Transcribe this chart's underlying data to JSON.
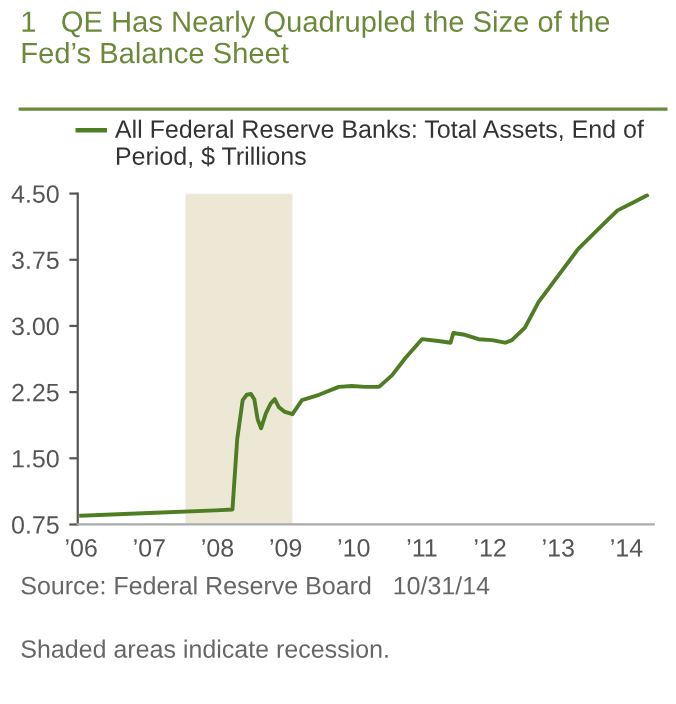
{
  "chart_data": {
    "type": "line",
    "title": "1   QE Has Nearly Quadrupled the Size of the Fed’s Balance Sheet",
    "x": [
      2006.0,
      2007.0,
      2007.97,
      2008.22,
      2008.29,
      2008.37,
      2008.43,
      2008.49,
      2008.54,
      2008.59,
      2008.64,
      2008.71,
      2008.78,
      2008.84,
      2008.9,
      2008.98,
      2009.1,
      2009.24,
      2009.49,
      2009.78,
      2009.97,
      2010.17,
      2010.37,
      2010.56,
      2010.76,
      2011.0,
      2011.24,
      2011.42,
      2011.46,
      2011.63,
      2011.83,
      2012.03,
      2012.22,
      2012.32,
      2012.51,
      2012.71,
      2013.0,
      2013.29,
      2013.59,
      2013.87,
      2014.1,
      2014.3
    ],
    "series": [
      {
        "name": "All Federal Reserve Banks: Total Assets, End of Period, $ Trillions",
        "color": "#4e7d24",
        "values": [
          0.85,
          0.88,
          0.91,
          0.92,
          1.72,
          2.16,
          2.22,
          2.23,
          2.17,
          1.94,
          1.84,
          2.01,
          2.12,
          2.17,
          2.08,
          2.03,
          2.0,
          2.16,
          2.22,
          2.31,
          2.32,
          2.31,
          2.31,
          2.44,
          2.64,
          2.85,
          2.83,
          2.81,
          2.92,
          2.9,
          2.85,
          2.84,
          2.81,
          2.84,
          2.98,
          3.27,
          3.57,
          3.87,
          4.1,
          4.31,
          4.4,
          4.48
        ]
      }
    ],
    "xlim": [
      2005.95,
      2014.4
    ],
    "xticks": [
      {
        "value": 2006,
        "label": "’06"
      },
      {
        "value": 2007,
        "label": "’07"
      },
      {
        "value": 2008,
        "label": "’08"
      },
      {
        "value": 2009,
        "label": "’09"
      },
      {
        "value": 2010,
        "label": "’10"
      },
      {
        "value": 2011,
        "label": "’11"
      },
      {
        "value": 2012,
        "label": "’12"
      },
      {
        "value": 2013,
        "label": "’13"
      },
      {
        "value": 2014,
        "label": "’14"
      }
    ],
    "ylim": [
      0.75,
      4.5
    ],
    "yticks": [
      {
        "value": 0.75,
        "label": "0.75"
      },
      {
        "value": 1.5,
        "label": "1.50"
      },
      {
        "value": 2.25,
        "label": "2.25"
      },
      {
        "value": 3.0,
        "label": "3.00"
      },
      {
        "value": 3.75,
        "label": "3.75"
      },
      {
        "value": 4.5,
        "label": "4.50"
      }
    ],
    "bands": [
      {
        "axis": "x",
        "from": 2007.53,
        "to": 2009.1,
        "color": "#ede8d6"
      }
    ],
    "legend": "top left",
    "grid": false,
    "annotations": [
      "Source: Federal Reserve Board   10/31/14",
      "Shaded areas indicate recession."
    ]
  }
}
